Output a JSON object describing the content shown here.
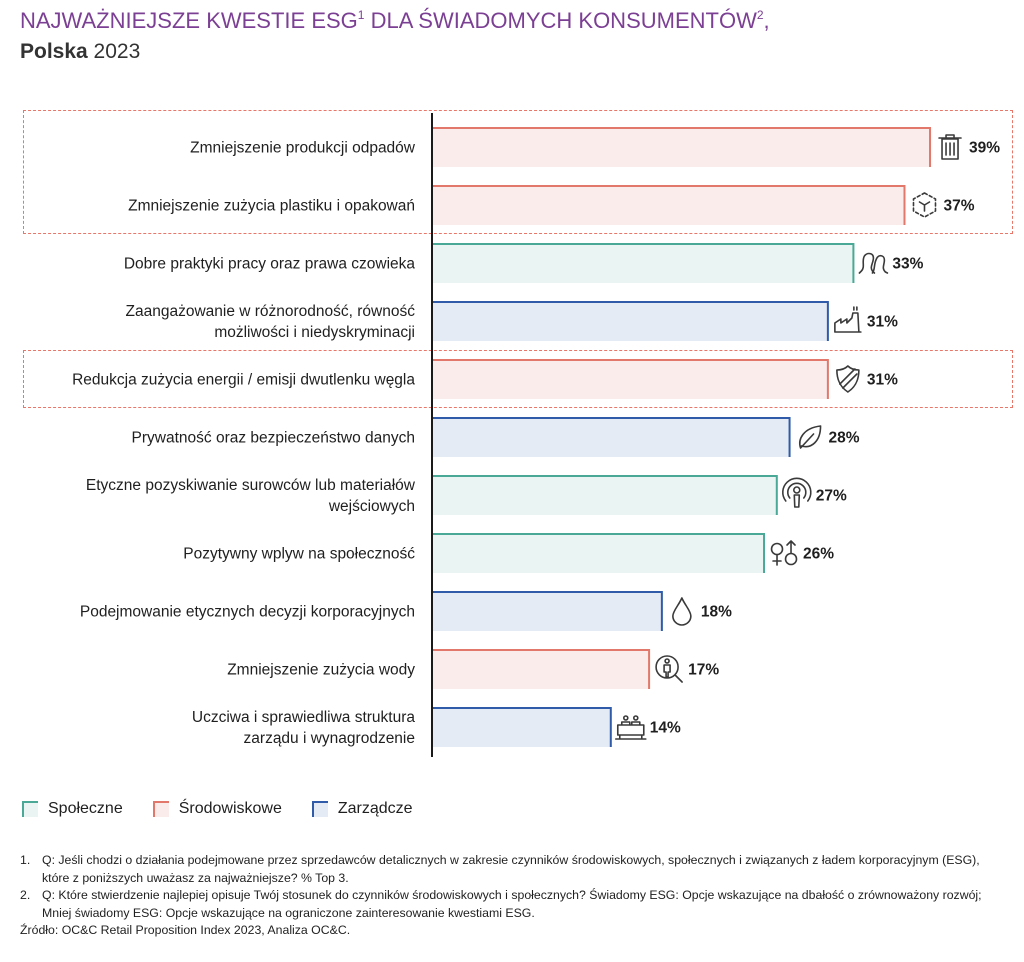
{
  "title": {
    "main_part1": "NAJWAŻNIEJSZE KWESTIE ESG",
    "sup1": "1",
    "main_part2": " DLA ŚWIADOMYCH KONSUMENTÓW",
    "sup2": "2",
    "main_part3": ",",
    "subtitle_bold": "Polska",
    "subtitle_rest": " 2023"
  },
  "colors": {
    "title": "#7b3f93",
    "spoleczne": {
      "stroke": "#4aa896",
      "fill": "#eaf5f3"
    },
    "srodowiskowe": {
      "stroke": "#e2786b",
      "fill": "#fbecec"
    },
    "zarzadcze": {
      "stroke": "#2f5ba8",
      "fill": "#e5ebf5"
    },
    "highlight": "#e8776a"
  },
  "chart_data": {
    "type": "bar",
    "orientation": "horizontal",
    "title": "NAJWAŻNIEJSZE KWESTIE ESG DLA ŚWIADOMYCH KONSUMENTÓW, Polska 2023",
    "xlabel": "",
    "ylabel": "",
    "xlim": [
      0,
      40
    ],
    "grid": false,
    "legend_position": "bottom-left",
    "categories": [
      [
        "Zmniejszenie produkcji odpadów"
      ],
      [
        "Zmniejszenie zużycia plastiku i opakowań"
      ],
      [
        "Dobre praktyki pracy oraz prawa czowieka"
      ],
      [
        "Zaangażowanie w różnorodność, równość",
        "możliwości i niedyskryminacji"
      ],
      [
        "Redukcja zużycia energii   / emisji dwutlenku węgla"
      ],
      [
        "Prywatność oraz bezpieczeństwo danych"
      ],
      [
        "Etyczne pozyskiwanie surowców lub materiałów",
        "wejściowych"
      ],
      [
        "Pozytywny wplyw na społeczność"
      ],
      [
        "Podejmowanie etycznych decyzji korporacyjnych"
      ],
      [
        "Zmniejszenie zużycia wody"
      ],
      [
        "Uczciwa i sprawiedliwa struktura",
        "zarządu i wynagrodzenie"
      ]
    ],
    "values": [
      39,
      37,
      33,
      31,
      31,
      28,
      27,
      26,
      18,
      17,
      14
    ],
    "value_labels": [
      "39%",
      "37%",
      "33%",
      "31%",
      "31%",
      "28%",
      "27%",
      "26%",
      "18%",
      "17%",
      "14%"
    ],
    "groups": [
      "srodowiskowe",
      "srodowiskowe",
      "spoleczne",
      "zarzadcze",
      "srodowiskowe",
      "zarzadcze",
      "spoleczne",
      "spoleczne",
      "zarzadcze",
      "srodowiskowe",
      "zarzadcze"
    ],
    "icons": [
      "trash-icon",
      "dashed-cube-icon",
      "people-outline-icon",
      "factory-icon",
      "shield-icon",
      "leaf-icon",
      "podcast-person-icon",
      "gender-icon",
      "water-drop-icon",
      "person-search-icon",
      "board-meeting-icon"
    ],
    "highlighted_rows": [
      0,
      1,
      4
    ],
    "legend": [
      {
        "key": "spoleczne",
        "label": "Społeczne"
      },
      {
        "key": "srodowiskowe",
        "label": "Środowiskowe"
      },
      {
        "key": "zarzadcze",
        "label": "Zarządcze"
      }
    ]
  },
  "footnotes": [
    {
      "num": "1.",
      "text": "Q: Jeśli chodzi o działania podejmowane przez sprzedawców detalicznych w zakresie czynników środowiskowych, społecznych i związanych z ładem korporacyjnym (ESG), które z poniższych uważasz za najważniejsze? % Top 3."
    },
    {
      "num": "2.",
      "text": "Q: Które stwierdzenie najlepiej opisuje Twój stosunek do czynników środowiskowych i społecznych? Świadomy ESG: Opcje wskazujące na dbałość o zrównoważony rozwój; Mniej świadomy ESG: Opcje wskazujące na ograniczone zainteresowanie kwestiami ESG."
    }
  ],
  "source": "Źródło: OC&C Retail Proposition Index 2023, Analiza OC&C."
}
